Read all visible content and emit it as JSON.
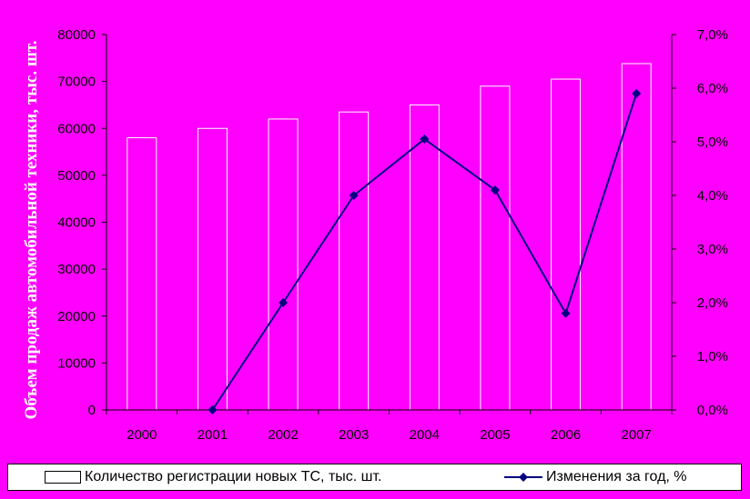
{
  "chart_data": {
    "type": "bar+line",
    "categories": [
      "2000",
      "2001",
      "2002",
      "2003",
      "2004",
      "2005",
      "2006",
      "2007"
    ],
    "series": [
      {
        "name": "Количество регистрации новых ТС, тыс. шт.",
        "type": "bar",
        "axis": "left",
        "values": [
          58000,
          60000,
          62000,
          63500,
          65000,
          69000,
          70500,
          73800
        ],
        "color": "#FF00FF",
        "border": "#FFFFFF"
      },
      {
        "name": "Изменения за год, %",
        "type": "line",
        "axis": "right",
        "values": [
          null,
          0.0,
          2.0,
          4.0,
          5.05,
          4.1,
          1.8,
          5.9
        ],
        "color": "#000080"
      }
    ],
    "ylabel": "Объем продаж автомобильной техники, тыс. шт.",
    "ylim": [
      0,
      80000
    ],
    "y_ticks": [
      "0",
      "10000",
      "20000",
      "30000",
      "40000",
      "50000",
      "60000",
      "70000",
      "80000"
    ],
    "y2lim": [
      0,
      7
    ],
    "y2_ticks": [
      "0,0%",
      "1,0%",
      "2,0%",
      "3,0%",
      "4,0%",
      "5,0%",
      "6,0%",
      "7,0%"
    ],
    "legend_position": "bottom",
    "grid": false,
    "background": "#FF00FF"
  }
}
